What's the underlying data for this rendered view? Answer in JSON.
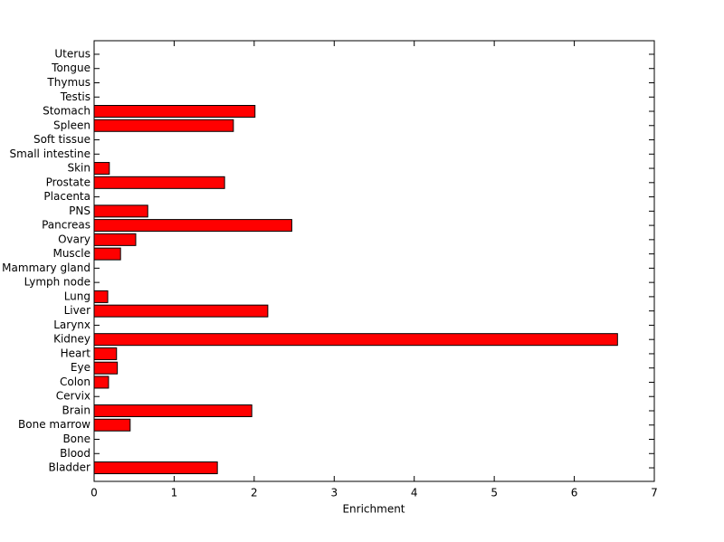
{
  "chart_data": {
    "type": "barh",
    "xlabel": "Enrichment",
    "categories": [
      "Bladder",
      "Blood",
      "Bone",
      "Bone marrow",
      "Brain",
      "Cervix",
      "Colon",
      "Eye",
      "Heart",
      "Kidney",
      "Larynx",
      "Liver",
      "Lung",
      "Lymph node",
      "Mammary gland",
      "Muscle",
      "Ovary",
      "Pancreas",
      "PNS",
      "Placenta",
      "Prostate",
      "Skin",
      "Small intestine",
      "Soft tissue",
      "Spleen",
      "Stomach",
      "Testis",
      "Thymus",
      "Tongue",
      "Uterus"
    ],
    "values": [
      1.54,
      0,
      0,
      0.45,
      1.97,
      0,
      0.18,
      0.29,
      0.28,
      6.54,
      0,
      2.17,
      0.17,
      0,
      0,
      0.33,
      0.52,
      2.47,
      0.67,
      0,
      1.63,
      0.19,
      0,
      0,
      1.74,
      2.01,
      0,
      0,
      0,
      0
    ],
    "color": "#ff0000",
    "xlim": [
      0,
      7
    ],
    "xticks": [
      0,
      1,
      2,
      3,
      4,
      5,
      6,
      7
    ]
  }
}
